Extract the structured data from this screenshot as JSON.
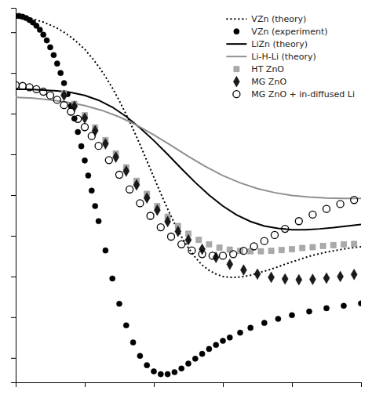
{
  "chart_data": {
    "type": "line",
    "xlim": [
      0.0,
      1.0
    ],
    "ylim": [
      0.14,
      1.06
    ],
    "xticks": [
      0.0,
      0.2,
      0.4,
      0.6,
      0.8,
      1.0
    ],
    "yticks": [
      0.2,
      0.3,
      0.4,
      0.5,
      0.6,
      0.7,
      0.8,
      0.9,
      1.0
    ],
    "tick_labels": false,
    "legend": "upper right",
    "series": [
      {
        "name": "VZn (theory)",
        "type": "line",
        "line_style": "dotted",
        "color": "#000000",
        "x": [
          0.0,
          0.02,
          0.04,
          0.06,
          0.08,
          0.1,
          0.12,
          0.14,
          0.16,
          0.18,
          0.2,
          0.22,
          0.24,
          0.26,
          0.28,
          0.3,
          0.32,
          0.34,
          0.36,
          0.38,
          0.4,
          0.42,
          0.44,
          0.46,
          0.48,
          0.5,
          0.52,
          0.54,
          0.56,
          0.58,
          0.6,
          0.62,
          0.64,
          0.66,
          0.68,
          0.7,
          0.72,
          0.74,
          0.76,
          0.78,
          0.8,
          0.82,
          0.84,
          0.86,
          0.88,
          0.9,
          0.92,
          0.94,
          0.96,
          0.98,
          1.0
        ],
        "values": [
          1.04,
          1.04,
          1.035,
          1.03,
          1.025,
          1.018,
          1.01,
          1.0,
          0.988,
          0.974,
          0.958,
          0.938,
          0.916,
          0.891,
          0.863,
          0.832,
          0.798,
          0.762,
          0.724,
          0.684,
          0.644,
          0.604,
          0.566,
          0.53,
          0.498,
          0.47,
          0.447,
          0.428,
          0.415,
          0.406,
          0.4,
          0.398,
          0.398,
          0.4,
          0.403,
          0.408,
          0.413,
          0.418,
          0.424,
          0.43,
          0.436,
          0.441,
          0.447,
          0.452,
          0.456,
          0.46,
          0.463,
          0.466,
          0.469,
          0.471,
          0.473
        ]
      },
      {
        "name": "VZn (experiment)",
        "type": "scatter",
        "marker": "circle",
        "color": "#000000",
        "x": [
          0.0,
          0.01,
          0.02,
          0.03,
          0.04,
          0.05,
          0.06,
          0.07,
          0.08,
          0.09,
          0.1,
          0.11,
          0.12,
          0.13,
          0.14,
          0.15,
          0.16,
          0.17,
          0.18,
          0.19,
          0.2,
          0.21,
          0.22,
          0.23,
          0.24,
          0.26,
          0.28,
          0.3,
          0.32,
          0.34,
          0.36,
          0.38,
          0.4,
          0.42,
          0.44,
          0.46,
          0.48,
          0.5,
          0.52,
          0.54,
          0.56,
          0.58,
          0.6,
          0.62,
          0.65,
          0.68,
          0.72,
          0.76,
          0.8,
          0.85,
          0.9,
          0.95,
          1.0
        ],
        "values": [
          1.04,
          1.04,
          1.038,
          1.035,
          1.03,
          1.024,
          1.016,
          1.006,
          0.994,
          0.98,
          0.963,
          0.944,
          0.923,
          0.9,
          0.875,
          0.848,
          0.819,
          0.788,
          0.755,
          0.72,
          0.685,
          0.648,
          0.611,
          0.573,
          0.536,
          0.464,
          0.395,
          0.333,
          0.28,
          0.238,
          0.205,
          0.182,
          0.167,
          0.16,
          0.16,
          0.165,
          0.174,
          0.186,
          0.198,
          0.21,
          0.222,
          0.232,
          0.242,
          0.25,
          0.262,
          0.274,
          0.286,
          0.296,
          0.305,
          0.314,
          0.322,
          0.328,
          0.334
        ]
      },
      {
        "name": "LiZn (theory)",
        "type": "line",
        "line_style": "solid",
        "color": "#000000",
        "x": [
          0.0,
          0.04,
          0.08,
          0.12,
          0.16,
          0.2,
          0.24,
          0.28,
          0.32,
          0.36,
          0.4,
          0.44,
          0.48,
          0.52,
          0.56,
          0.6,
          0.64,
          0.68,
          0.72,
          0.76,
          0.8,
          0.84,
          0.88,
          0.92,
          0.96,
          1.0
        ],
        "values": [
          0.86,
          0.86,
          0.858,
          0.856,
          0.852,
          0.845,
          0.833,
          0.816,
          0.793,
          0.765,
          0.734,
          0.7,
          0.665,
          0.631,
          0.6,
          0.573,
          0.551,
          0.535,
          0.524,
          0.518,
          0.515,
          0.515,
          0.517,
          0.52,
          0.524,
          0.528
        ]
      },
      {
        "name": "Li-H-Li (theory)",
        "type": "line",
        "line_style": "solid",
        "color": "#909090",
        "x": [
          0.0,
          0.05,
          0.1,
          0.15,
          0.2,
          0.25,
          0.3,
          0.35,
          0.4,
          0.45,
          0.5,
          0.55,
          0.6,
          0.65,
          0.7,
          0.75,
          0.8,
          0.85,
          0.9,
          0.95,
          1.0
        ],
        "values": [
          0.84,
          0.838,
          0.834,
          0.828,
          0.82,
          0.808,
          0.792,
          0.772,
          0.748,
          0.722,
          0.695,
          0.67,
          0.648,
          0.63,
          0.616,
          0.606,
          0.599,
          0.595,
          0.593,
          0.592,
          0.592
        ]
      },
      {
        "name": "HT ZnO",
        "type": "scatter",
        "marker": "square",
        "color": "#aaaaaa",
        "x": [
          0.14,
          0.17,
          0.2,
          0.23,
          0.26,
          0.29,
          0.32,
          0.35,
          0.38,
          0.41,
          0.44,
          0.47,
          0.5,
          0.53,
          0.56,
          0.59,
          0.62,
          0.65,
          0.68,
          0.71,
          0.74,
          0.77,
          0.8,
          0.83,
          0.86,
          0.89,
          0.92,
          0.95,
          0.98
        ],
        "values": [
          0.85,
          0.824,
          0.796,
          0.766,
          0.735,
          0.702,
          0.668,
          0.635,
          0.603,
          0.573,
          0.547,
          0.524,
          0.505,
          0.49,
          0.479,
          0.471,
          0.466,
          0.463,
          0.462,
          0.462,
          0.463,
          0.465,
          0.467,
          0.47,
          0.472,
          0.475,
          0.477,
          0.479,
          0.48
        ]
      },
      {
        "name": "MG ZnO",
        "type": "scatter",
        "marker": "diamond",
        "color": "#1a1a1a",
        "x": [
          0.14,
          0.17,
          0.2,
          0.23,
          0.26,
          0.29,
          0.32,
          0.35,
          0.38,
          0.41,
          0.44,
          0.47,
          0.5,
          0.54,
          0.58,
          0.62,
          0.66,
          0.7,
          0.74,
          0.78,
          0.82,
          0.86,
          0.9,
          0.94,
          0.98
        ],
        "values": [
          0.845,
          0.818,
          0.789,
          0.758,
          0.726,
          0.693,
          0.659,
          0.625,
          0.593,
          0.563,
          0.535,
          0.511,
          0.49,
          0.467,
          0.447,
          0.43,
          0.416,
          0.406,
          0.398,
          0.394,
          0.392,
          0.393,
          0.396,
          0.4,
          0.405
        ]
      },
      {
        "name": "MG ZnO + in-diffused Li",
        "type": "scatter",
        "marker": "circle-open",
        "color": "#000000",
        "x": [
          0.0,
          0.02,
          0.04,
          0.06,
          0.08,
          0.1,
          0.12,
          0.14,
          0.16,
          0.18,
          0.2,
          0.22,
          0.24,
          0.27,
          0.3,
          0.33,
          0.36,
          0.39,
          0.42,
          0.45,
          0.48,
          0.51,
          0.54,
          0.57,
          0.6,
          0.63,
          0.66,
          0.69,
          0.72,
          0.75,
          0.78,
          0.82,
          0.86,
          0.9,
          0.94,
          0.98
        ],
        "values": [
          0.87,
          0.868,
          0.865,
          0.86,
          0.854,
          0.845,
          0.834,
          0.821,
          0.805,
          0.787,
          0.767,
          0.745,
          0.721,
          0.686,
          0.65,
          0.614,
          0.58,
          0.549,
          0.521,
          0.498,
          0.479,
          0.464,
          0.455,
          0.451,
          0.451,
          0.455,
          0.463,
          0.474,
          0.487,
          0.502,
          0.517,
          0.536,
          0.552,
          0.566,
          0.578,
          0.588
        ]
      }
    ]
  }
}
